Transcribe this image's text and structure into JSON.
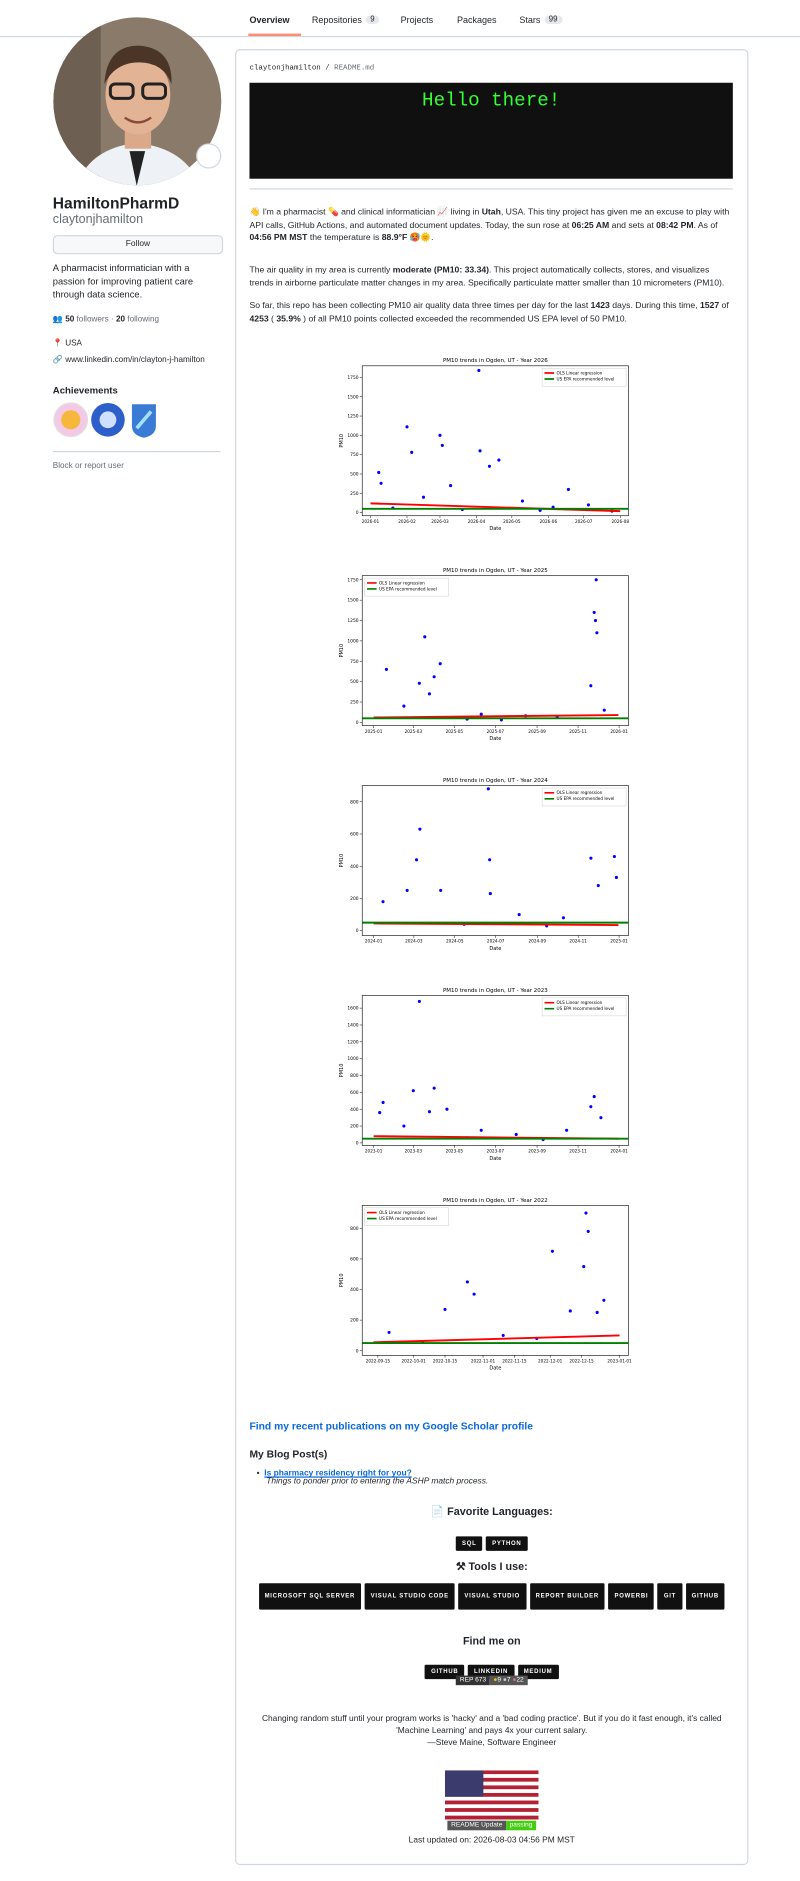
{
  "nav": {
    "tabs": [
      {
        "label": "Overview"
      },
      {
        "label": "Repositories",
        "count": "9"
      },
      {
        "label": "Projects"
      },
      {
        "label": "Packages"
      },
      {
        "label": "Stars",
        "count": "99"
      }
    ]
  },
  "profile": {
    "name": "HamiltonPharmD",
    "username": "claytonjhamilton",
    "follow": "Follow",
    "bio": "A pharmacist informatician with a passion for improving patient care through data science.",
    "followers_count": "50",
    "followers_label": "followers",
    "separator": "·",
    "following_count": "20",
    "following_label": "following",
    "location": "USA",
    "website": "www.linkedin.com/in/clayton-j-hamilton",
    "achievements_title": "Achievements",
    "block": "Block or report user"
  },
  "readme": {
    "owner": "claytonjhamilton",
    "slash": "/",
    "file": "README.md",
    "banner": "Hello there!",
    "paragraphs": [
      [
        {
          "text": "👋 I'm a pharmacist 💊 and clinical informatician 📈 living in "
        },
        {
          "text": "Utah",
          "bold": true
        },
        {
          "text": ", USA. This tiny project has given me an excuse to play with API calls, GitHub Actions, and automated document updates. Today, the sun rose at "
        },
        {
          "text": "06:25 AM",
          "bold": true
        },
        {
          "text": " and sets at "
        },
        {
          "text": "08:42 PM",
          "bold": true
        },
        {
          "text": ". As of "
        },
        {
          "text": "04:56 PM MST",
          "bold": true
        },
        {
          "text": " the temperature is "
        },
        {
          "text": "88.9°F 🥵🌞",
          "bold": true
        },
        {
          "text": "."
        }
      ],
      [
        {
          "text": "The air quality in my area is currently "
        },
        {
          "text": "moderate (PM10: 33.34)",
          "bold": true
        },
        {
          "text": ". This project automatically collects, stores, and visualizes trends in airborne particulate matter changes in my area. Specifically particulate matter smaller than 10 micrometers (PM10)."
        }
      ],
      [
        {
          "text": "So far, this repo has been collecting PM10 air quality data three times per day for the last "
        },
        {
          "text": "1423",
          "bold": true
        },
        {
          "text": " days. During this time, "
        },
        {
          "text": "1527",
          "bold": true
        },
        {
          "text": " of "
        },
        {
          "text": "4253",
          "bold": true
        },
        {
          "text": " ( "
        },
        {
          "text": "35.9%",
          "bold": true
        },
        {
          "text": " ) of all PM10 points collected exceeded the recommended US EPA level of 50 PM10."
        }
      ]
    ],
    "charts": [
      {
        "type": "scatter",
        "title": "PM10 trends in Ogden, UT - Year 2026",
        "xlabel": "Date",
        "ylabel": "PM10",
        "legend": "upper right",
        "xlim": [
          "2025-12-25",
          "2026-08-08"
        ],
        "ylim": [
          -40,
          1900
        ],
        "xticks": [
          "2026-01",
          "2026-02",
          "2026-03",
          "2026-04",
          "2026-05",
          "2026-06",
          "2026-07",
          "2026-08"
        ],
        "yticks": [
          0,
          250,
          500,
          750,
          1000,
          1250,
          1500,
          1750
        ],
        "points": {
          "color": "#0000ff",
          "x": [
            "2026-04-03",
            "2026-02-01",
            "2026-03-01",
            "2026-03-03",
            "2026-04-04",
            "2026-01-08",
            "2026-02-05",
            "2026-04-20",
            "2026-01-10",
            "2026-04-12",
            "2026-06-18",
            "2026-03-10",
            "2026-05-10",
            "2026-02-15",
            "2026-07-05",
            "2026-01-20",
            "2026-03-20",
            "2026-05-25",
            "2026-06-05",
            "2026-07-25"
          ],
          "y": [
            1840,
            1110,
            1000,
            870,
            800,
            520,
            780,
            680,
            380,
            600,
            300,
            350,
            150,
            200,
            100,
            60,
            40,
            30,
            70,
            20
          ]
        },
        "series": [
          {
            "name": "OLS Linear regression",
            "color": "#ff0000",
            "x": [
              "2026-01-01",
              "2026-08-01"
            ],
            "values": [
              120,
              20
            ]
          },
          {
            "name": "US EPA recommended level",
            "color": "#008000",
            "values": [
              50
            ]
          }
        ]
      },
      {
        "type": "scatter",
        "title": "PM10 trends in Ogden, UT - Year 2025",
        "xlabel": "Date",
        "ylabel": "PM10",
        "legend": "upper left",
        "xlim": [
          "2024-12-15",
          "2026-01-15"
        ],
        "ylim": [
          -40,
          1800
        ],
        "xticks": [
          "2025-01",
          "2025-03",
          "2025-05",
          "2025-07",
          "2025-09",
          "2025-11",
          "2026-01"
        ],
        "yticks": [
          0,
          250,
          500,
          750,
          1000,
          1250,
          1500,
          1750
        ],
        "points": {
          "color": "#0000ff",
          "x": [
            "2025-11-28",
            "2025-11-25",
            "2025-11-27",
            "2025-11-29",
            "2025-03-18",
            "2025-04-10",
            "2025-01-20",
            "2025-03-10",
            "2025-04-01",
            "2025-11-20",
            "2025-03-25",
            "2025-02-15",
            "2025-06-10",
            "2025-08-15",
            "2025-10-01",
            "2025-12-10",
            "2025-05-20",
            "2025-07-10"
          ],
          "y": [
            1750,
            1350,
            1250,
            1100,
            1050,
            720,
            650,
            480,
            560,
            450,
            350,
            200,
            100,
            80,
            60,
            150,
            40,
            30
          ]
        },
        "series": [
          {
            "name": "OLS Linear regression",
            "color": "#ff0000",
            "x": [
              "2025-01-01",
              "2025-12-31"
            ],
            "values": [
              60,
              90
            ]
          },
          {
            "name": "US EPA recommended level",
            "color": "#008000",
            "values": [
              50
            ]
          }
        ]
      },
      {
        "type": "scatter",
        "title": "PM10 trends in Ogden, UT - Year 2024",
        "xlabel": "Date",
        "ylabel": "PM10",
        "legend": "upper right",
        "xlim": [
          "2023-12-15",
          "2025-01-15"
        ],
        "ylim": [
          -30,
          900
        ],
        "xticks": [
          "2024-01",
          "2024-03",
          "2024-05",
          "2024-07",
          "2024-09",
          "2024-11",
          "2025-01"
        ],
        "yticks": [
          0,
          200,
          400,
          600,
          800
        ],
        "points": {
          "color": "#0000ff",
          "x": [
            "2024-06-20",
            "2024-03-10",
            "2024-03-05",
            "2024-06-22",
            "2024-11-20",
            "2024-12-25",
            "2024-12-28",
            "2024-02-20",
            "2024-04-10",
            "2024-06-23",
            "2024-01-15",
            "2024-08-05",
            "2024-10-10",
            "2024-12-01",
            "2024-05-15",
            "2024-09-15"
          ],
          "y": [
            880,
            630,
            440,
            440,
            450,
            460,
            330,
            250,
            250,
            230,
            180,
            100,
            80,
            280,
            40,
            30
          ]
        },
        "series": [
          {
            "name": "OLS Linear regression",
            "color": "#ff0000",
            "x": [
              "2024-01-01",
              "2024-12-31"
            ],
            "values": [
              45,
              35
            ]
          },
          {
            "name": "US EPA recommended level",
            "color": "#008000",
            "values": [
              50
            ]
          }
        ]
      },
      {
        "type": "scatter",
        "title": "PM10 trends in Ogden, UT - Year 2023",
        "xlabel": "Date",
        "ylabel": "PM10",
        "legend": "upper right",
        "xlim": [
          "2022-12-15",
          "2024-01-15"
        ],
        "ylim": [
          -30,
          1750
        ],
        "xticks": [
          "2023-01",
          "2023-03",
          "2023-05",
          "2023-07",
          "2023-09",
          "2023-11",
          "2024-01"
        ],
        "yticks": [
          0,
          200,
          400,
          600,
          800,
          1000,
          1200,
          1400,
          1600
        ],
        "points": {
          "color": "#0000ff",
          "x": [
            "2023-03-10",
            "2023-04-01",
            "2023-03-01",
            "2023-11-25",
            "2023-01-15",
            "2023-11-20",
            "2023-04-20",
            "2023-03-25",
            "2023-01-10",
            "2023-12-05",
            "2023-06-10",
            "2023-08-01",
            "2023-10-15",
            "2023-02-15",
            "2023-05-20",
            "2023-09-10"
          ],
          "y": [
            1680,
            650,
            620,
            550,
            480,
            430,
            400,
            370,
            360,
            300,
            150,
            100,
            150,
            200,
            60,
            40
          ]
        },
        "series": [
          {
            "name": "OLS Linear regression",
            "color": "#ff0000",
            "x": [
              "2023-01-01",
              "2023-12-31"
            ],
            "values": [
              80,
              50
            ]
          },
          {
            "name": "US EPA recommended level",
            "color": "#008000",
            "values": [
              50
            ]
          }
        ]
      },
      {
        "type": "scatter",
        "title": "PM10 trends in Ogden, UT - Year 2022",
        "xlabel": "Date",
        "ylabel": "PM10",
        "legend": "upper left",
        "xlim": [
          "2022-09-08",
          "2023-01-05"
        ],
        "ylim": [
          -30,
          950
        ],
        "xticks": [
          "2022-09-15",
          "2022-10-01",
          "2022-10-15",
          "2022-11-01",
          "2022-11-15",
          "2022-12-01",
          "2022-12-15",
          "2023-01-01"
        ],
        "yticks": [
          0,
          200,
          400,
          600,
          800
        ],
        "points": {
          "color": "#0000ff",
          "x": [
            "2022-12-17",
            "2022-12-18",
            "2022-12-02",
            "2022-12-16",
            "2022-10-25",
            "2022-10-28",
            "2022-12-25",
            "2022-10-15",
            "2022-12-10",
            "2022-12-22",
            "2022-11-10",
            "2022-09-20",
            "2022-11-25",
            "2022-10-05"
          ],
          "y": [
            900,
            780,
            650,
            550,
            450,
            370,
            330,
            270,
            260,
            250,
            100,
            120,
            80,
            60
          ]
        },
        "series": [
          {
            "name": "OLS Linear regression",
            "color": "#ff0000",
            "x": [
              "2022-09-13",
              "2023-01-01"
            ],
            "values": [
              55,
              100
            ]
          },
          {
            "name": "US EPA recommended level",
            "color": "#008000",
            "values": [
              50
            ]
          }
        ]
      }
    ],
    "scholar_link": "Find my recent publications on my Google Scholar profile",
    "blog_heading": "My Blog Post(s)",
    "blog_posts": [
      {
        "title": "Is pharmacy residency right for you?",
        "subtitle": "Things to ponder prior to entering the ASHP match process."
      }
    ],
    "languages_heading": "📄 Favorite Languages:",
    "languages": [
      "SQL",
      "PYTHON"
    ],
    "tools_heading": "⚒ Tools I use:",
    "tools": [
      "MICROSOFT SQL SERVER",
      "VISUAL STUDIO CODE",
      "VISUAL STUDIO",
      "REPORT BUILDER",
      "POWERBI",
      "GIT",
      "GITHUB"
    ],
    "find_heading": "Find me on",
    "social": [
      "GITHUB",
      "LINKEDIN",
      "MEDIUM"
    ],
    "so_badge": {
      "label": "REP",
      "rep": "673",
      "gold": "9",
      "silver": "7",
      "bronze": "22"
    },
    "quote": "Changing random stuff until your program works is 'hacky' and a 'bad coding practice'. But if you do it fast enough, it's called 'Machine Learning' and pays 4x your current salary.",
    "quote_author": "—Steve Maine, Software Engineer",
    "workflow_badge": {
      "label": "README Update",
      "status": "passing"
    },
    "last_updated": "Last updated on: 2026-08-03 04:56 PM MST"
  }
}
